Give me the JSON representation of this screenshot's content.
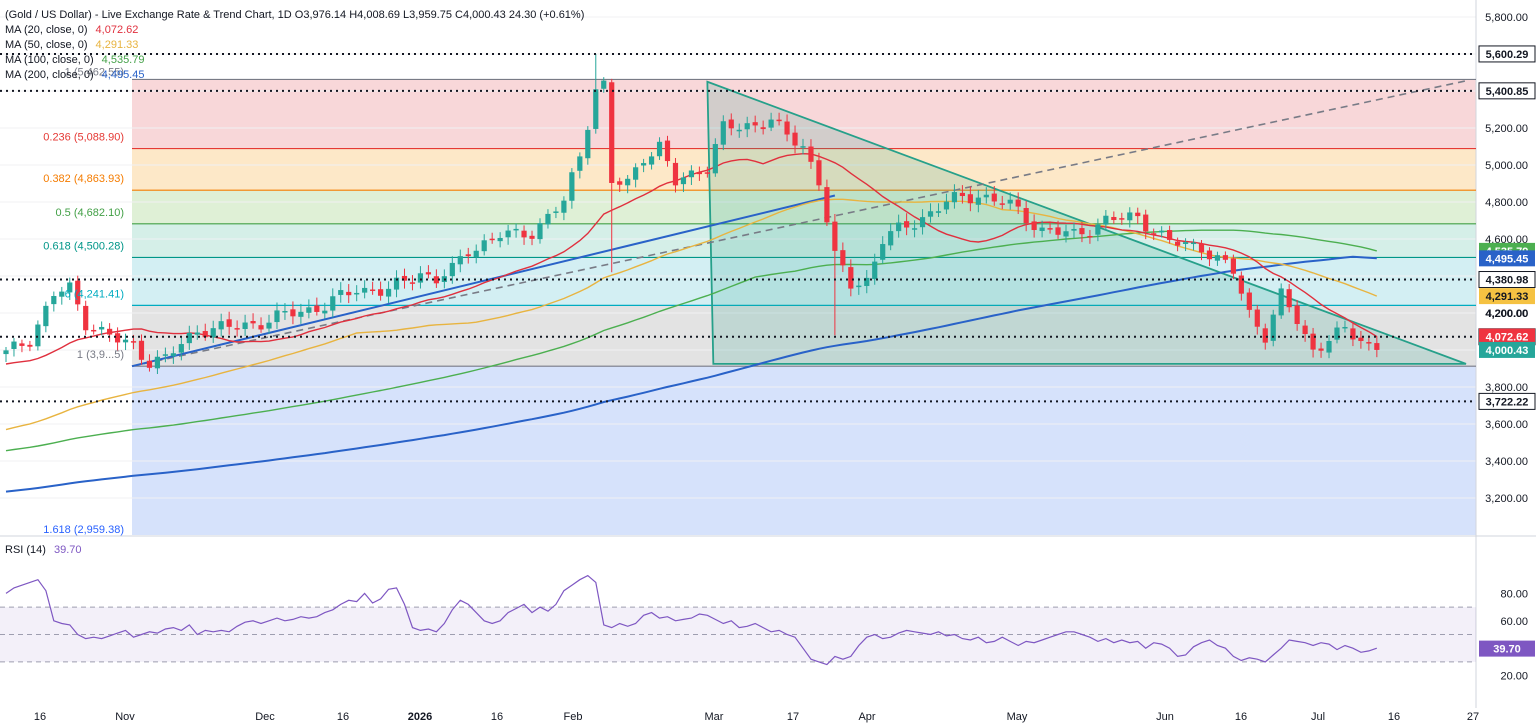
{
  "header": {
    "line1": "(Gold / US Dollar) - Live Exchange Rate & Trend Chart, 1D  O3,976.14  H4,008.69  L3,959.75  C4,000.43  24.30 (+0.61%)",
    "ma": [
      {
        "label": "MA (20, close, 0)",
        "value": "4,072.62",
        "color": "#e0303e"
      },
      {
        "label": "MA (50, close, 0)",
        "value": "4,291.33",
        "color": "#e8b440"
      },
      {
        "label": "MA (100, close, 0)",
        "value": "4,535.79",
        "color": "#43a047"
      },
      {
        "label": "MA (200, close, 0)",
        "value": "4,495.45",
        "color": "#2962c8"
      }
    ]
  },
  "rsi_label": {
    "name": "RSI (14)",
    "value": "39.70"
  },
  "colors": {
    "up": "#26a69a",
    "down": "#ef3340",
    "ma20": "#e0303e",
    "ma50": "#e8b440",
    "ma100": "#4caf50",
    "ma200": "#2962c8",
    "triangle": "#26a08a",
    "rsi": "#7e57c2"
  },
  "chart_data": {
    "type": "line",
    "title": "(Gold / US Dollar) - Live Exchange Rate & Trend Chart, 1D",
    "y_range": [
      3000,
      5900
    ],
    "price_ticks": [
      "5,800.00",
      "5,600.00",
      "5,400.00",
      "5,200.00",
      "5,000.00",
      "4,800.00",
      "4,600.00",
      "4,400.00",
      "4,200.00",
      "4,000.00",
      "3,800.00",
      "3,600.00",
      "3,400.00",
      "3,200.00"
    ],
    "price_tick_values": [
      5800,
      5600,
      5400,
      5200,
      5000,
      4800,
      4600,
      4400,
      4200,
      4000,
      3800,
      3600,
      3400,
      3200
    ],
    "x_labels": [
      "16",
      "Nov",
      "Dec",
      "16",
      "2026",
      "16",
      "Feb",
      "Mar",
      "17",
      "Apr",
      "May",
      "Jun",
      "16",
      "Jul",
      "16",
      "27"
    ],
    "fib_levels": [
      {
        "label": "1 (5,462.55)",
        "value": 5462.55,
        "color": "#787b86"
      },
      {
        "label": "0.236 (5,088.90)",
        "value": 5088.9,
        "color": "#e53935"
      },
      {
        "label": "0.382 (4,863.93)",
        "value": 4863.93,
        "color": "#f57c00"
      },
      {
        "label": "0.5 (4,682.10)",
        "value": 4682.1,
        "color": "#43a047"
      },
      {
        "label": "0.618 (4,500.28)",
        "value": 4500.28,
        "color": "#009688"
      },
      {
        "label": "6 (4,241.41)",
        "value": 4241.41,
        "color": "#00acc1"
      },
      {
        "label": "1 (3,9...5)",
        "value": 3912.5,
        "color": "#787b86"
      },
      {
        "label": "1.618 (2,959.38)",
        "value": 2959.38,
        "color": "#2962ff"
      }
    ],
    "dotted_levels": [
      {
        "label": "5,600.29",
        "value": 5600.29
      },
      {
        "label": "5,400.85",
        "value": 5400.85
      },
      {
        "label": "4,380.98",
        "value": 4380.98
      },
      {
        "label": "4,071.46",
        "value": 4071.46
      },
      {
        "label": "3,722.22",
        "value": 3722.22
      }
    ],
    "price_tags": [
      {
        "label": "4,535.79",
        "value": 4535.79,
        "bg": "#4caf50",
        "fg": "#ffffff"
      },
      {
        "label": "4,495.45",
        "value": 4495.45,
        "bg": "#2962c8",
        "fg": "#ffffff"
      },
      {
        "label": "4,291.33",
        "value": 4291.33,
        "bg": "#f5c242",
        "fg": "#131722"
      },
      {
        "label": "4,072.62",
        "value": 4072.62,
        "bg": "#ef3340",
        "fg": "#ffffff"
      },
      {
        "label": "4,000.43",
        "value": 4000.43,
        "bg": "#26a69a",
        "fg": "#ffffff"
      },
      {
        "label": "4,200.00",
        "value": 4200.0,
        "bg": "none",
        "fg": "#131722"
      }
    ],
    "rsi": {
      "ticks": [
        "80.00",
        "60.00",
        "40.00",
        "20.00"
      ],
      "tick_values": [
        80,
        60,
        40,
        20
      ],
      "bands": [
        70,
        50,
        30
      ],
      "last": "39.70",
      "series": [
        80,
        84,
        86,
        88,
        90,
        82,
        60,
        58,
        57,
        50,
        47,
        48,
        47,
        49,
        51,
        53,
        48,
        50,
        52,
        51,
        54,
        55,
        53,
        57,
        50,
        53,
        52,
        53,
        52,
        56,
        59,
        60,
        58,
        60,
        62,
        60,
        61,
        63,
        62,
        63,
        66,
        68,
        72,
        75,
        74,
        80,
        73,
        76,
        83,
        84,
        72,
        55,
        53,
        54,
        52,
        58,
        68,
        75,
        72,
        66,
        60,
        58,
        60,
        66,
        69,
        72,
        66,
        70,
        67,
        72,
        82,
        86,
        90,
        93,
        88,
        57,
        55,
        58,
        56,
        58,
        64,
        66,
        62,
        63,
        60,
        61,
        62,
        65,
        64,
        61,
        58,
        60,
        55,
        56,
        58,
        55,
        52,
        53,
        50,
        48,
        40,
        32,
        30,
        28,
        34,
        32,
        34,
        42,
        48,
        50,
        47,
        48,
        51,
        53,
        52,
        51,
        50,
        52,
        49,
        50,
        47,
        46,
        48,
        44,
        45,
        48,
        45,
        42,
        45,
        44,
        46,
        48,
        50,
        52,
        52,
        50,
        48,
        45,
        47,
        44,
        46,
        44,
        45,
        40,
        44,
        43,
        40,
        34,
        35,
        41,
        44,
        46,
        42,
        40,
        34,
        31,
        33,
        32,
        30,
        35,
        40,
        46,
        45,
        44,
        42,
        44,
        43,
        39,
        42,
        40,
        37,
        38,
        40
      ]
    },
    "ma_tail_values": {
      "ma20": 4072.62,
      "ma50": 4291.33,
      "ma100": 4535.79,
      "ma200": 4495.45
    },
    "last_close": 4000.43
  }
}
